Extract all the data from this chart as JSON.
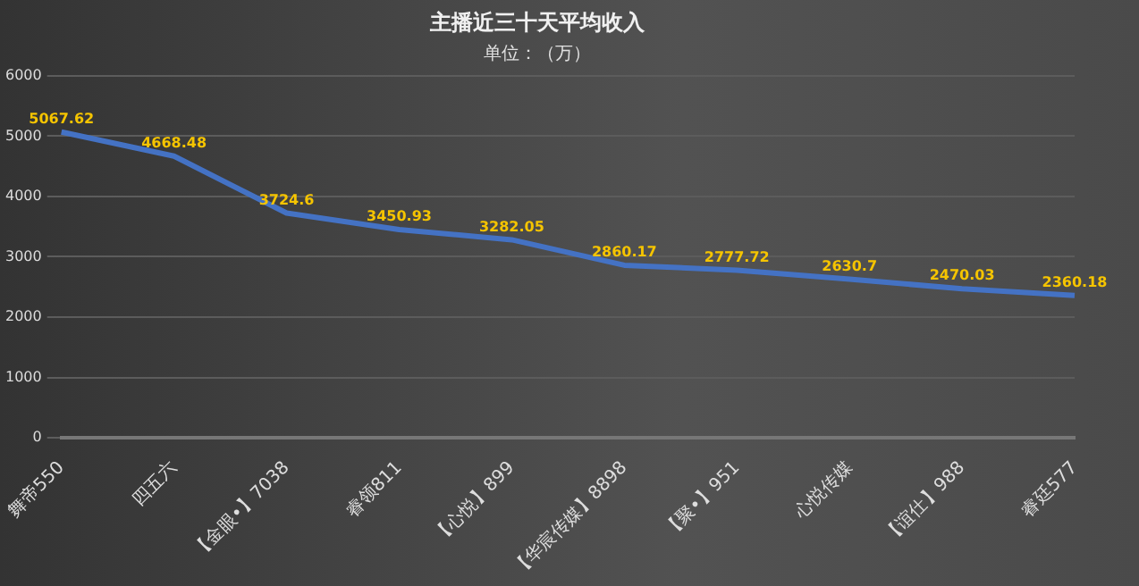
{
  "chart_data": {
    "type": "line",
    "title": "主播近三十天平均收入",
    "subtitle": "单位：（万）",
    "categories": [
      "舞帝550",
      "四五六",
      "【金眼•】7038",
      "睿领811",
      "【心悦】899",
      "【华宸传媒】8898",
      "【聚•】951",
      "心悦传媒",
      "【谊仕】988",
      "睿廷577"
    ],
    "series": [
      {
        "color": "#4472c4",
        "values": [
          5067.62,
          4668.48,
          3724.6,
          3450.93,
          3282.05,
          2860.17,
          2777.72,
          2630.7,
          2470.03,
          2360.18
        ]
      }
    ],
    "ylim": [
      0,
      6000
    ],
    "yticks": [
      0,
      1000,
      2000,
      3000,
      4000,
      5000,
      6000
    ],
    "grid": "y",
    "data_labels": true,
    "marker": "none",
    "line_style": "solid",
    "legend": false
  }
}
